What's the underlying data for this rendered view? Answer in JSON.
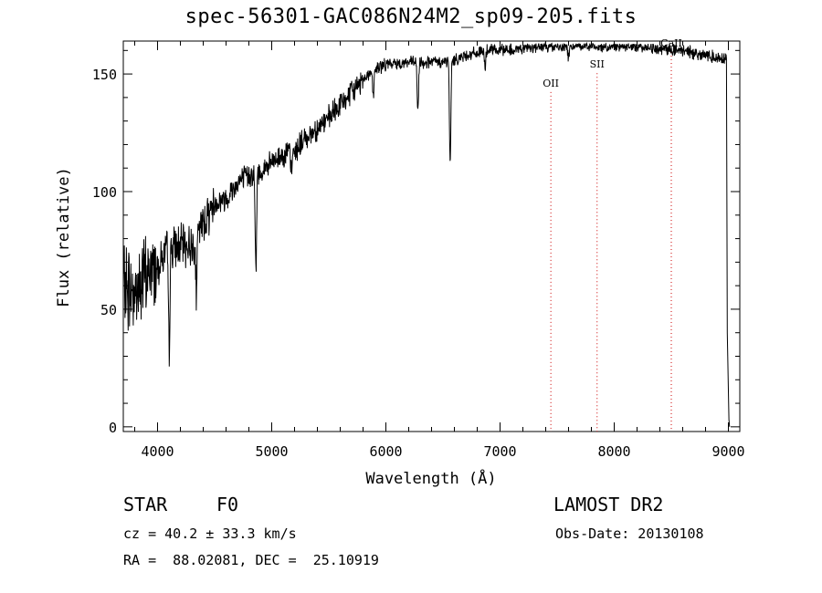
{
  "chart_data": {
    "type": "line",
    "title": "spec-56301-GAC086N24M2_sp09-205.fits",
    "xlabel": "Wavelength (Å)",
    "ylabel": "Flux (relative)",
    "xlim": [
      3700,
      9100
    ],
    "ylim": [
      -2,
      164
    ],
    "x_ticks": [
      4000,
      5000,
      6000,
      7000,
      8000,
      9000
    ],
    "y_ticks": [
      0,
      50,
      100,
      150
    ],
    "grid": false,
    "line_color": "#000000",
    "marker_line_color": "#cc0000",
    "continuum_anchors": [
      [
        3700,
        60
      ],
      [
        3800,
        57
      ],
      [
        3900,
        64
      ],
      [
        4000,
        69
      ],
      [
        4100,
        76
      ],
      [
        4200,
        77
      ],
      [
        4300,
        77
      ],
      [
        4400,
        87
      ],
      [
        4500,
        95
      ],
      [
        4600,
        97
      ],
      [
        4700,
        104
      ],
      [
        4800,
        107
      ],
      [
        4900,
        108
      ],
      [
        5000,
        112
      ],
      [
        5100,
        116
      ],
      [
        5200,
        117
      ],
      [
        5300,
        123
      ],
      [
        5400,
        127
      ],
      [
        5500,
        131
      ],
      [
        5600,
        137
      ],
      [
        5700,
        142
      ],
      [
        5800,
        148
      ],
      [
        5900,
        152
      ],
      [
        6000,
        154
      ],
      [
        6200,
        155
      ],
      [
        6400,
        155
      ],
      [
        6500,
        155
      ],
      [
        6600,
        156
      ],
      [
        6700,
        158
      ],
      [
        6800,
        159
      ],
      [
        6900,
        160
      ],
      [
        7000,
        160
      ],
      [
        7200,
        161
      ],
      [
        7400,
        162
      ],
      [
        7600,
        162
      ],
      [
        7800,
        162
      ],
      [
        8000,
        162
      ],
      [
        8200,
        162
      ],
      [
        8400,
        161
      ],
      [
        8600,
        160
      ],
      [
        8800,
        158
      ],
      [
        8900,
        157
      ],
      [
        8980,
        157
      ]
    ],
    "absorption_features": [
      [
        4102,
        44
      ],
      [
        4340,
        25
      ],
      [
        4861,
        43
      ],
      [
        5173,
        9
      ],
      [
        5890,
        12
      ],
      [
        6280,
        22
      ],
      [
        6563,
        45
      ],
      [
        6870,
        6
      ],
      [
        7600,
        5
      ]
    ],
    "end_drop": [
      [
        8990,
        40
      ],
      [
        9005,
        3
      ],
      [
        9010,
        0
      ]
    ],
    "line_markers": [
      {
        "label": "OII",
        "x": 7445,
        "label_y": 147
      },
      {
        "label": "SII",
        "x": 7850,
        "label_y": 155
      },
      {
        "label": "CaII",
        "x": 8500,
        "label_y": 164
      }
    ]
  },
  "footer": {
    "object_type": "STAR",
    "subclass": "F0",
    "survey": "LAMOST DR2",
    "redshift": "cz = 40.2 ± 33.3 km/s",
    "obs_date": "Obs-Date: 20130108",
    "coords": "RA =  88.02081, DEC =  25.10919"
  }
}
